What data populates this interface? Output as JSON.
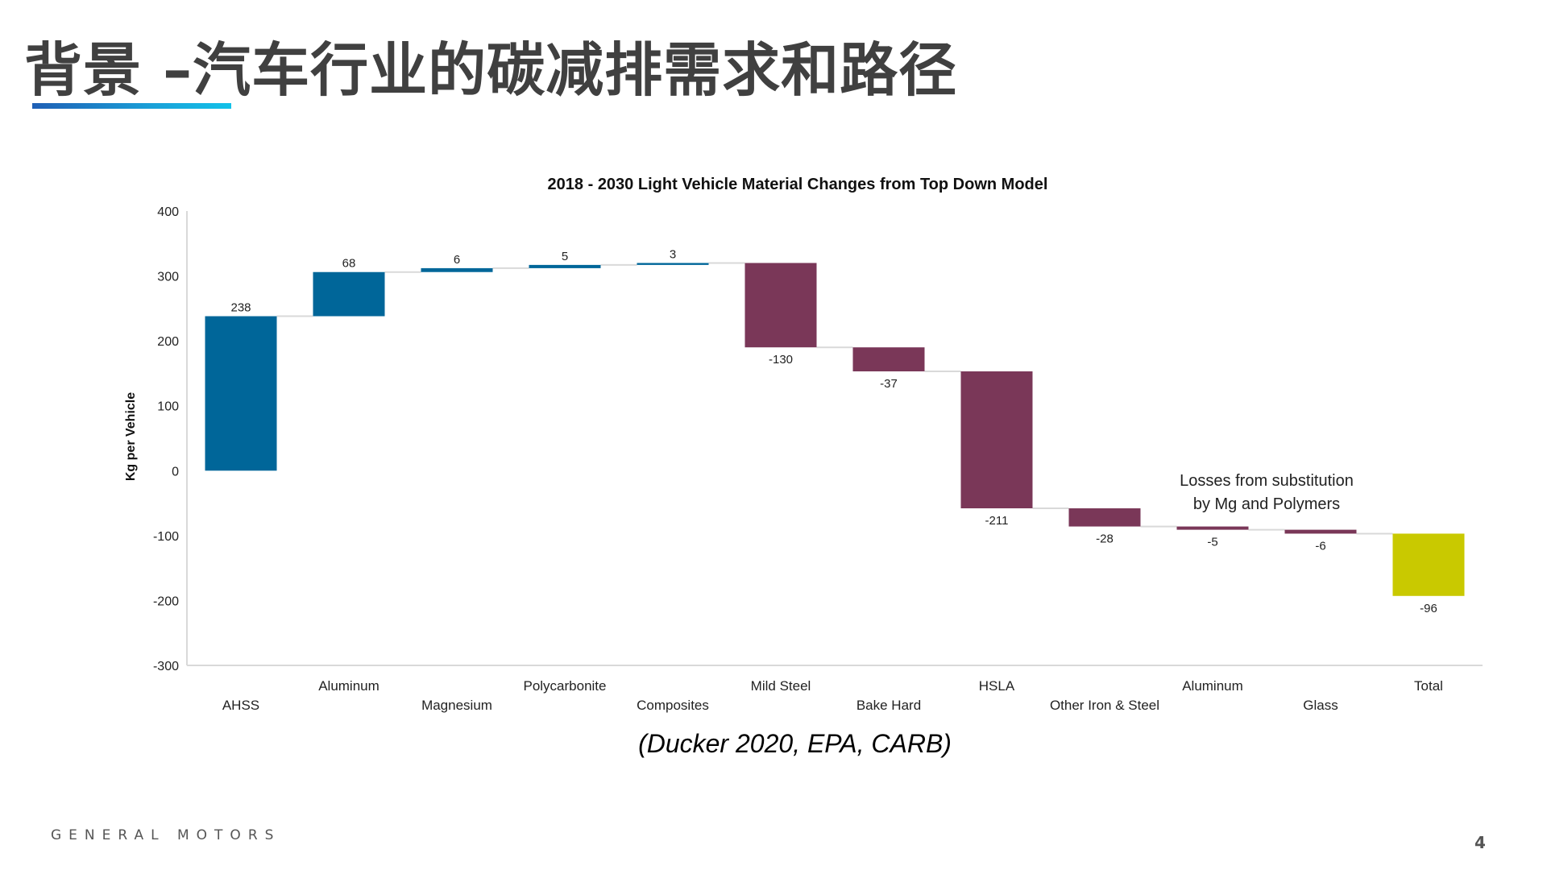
{
  "slide": {
    "title": "背景 –汽车行业的碳减排需求和路径",
    "source": "(Ducker 2020, EPA, CARB)",
    "logo_text": "GENERAL MOTORS",
    "page_number": "4"
  },
  "colors": {
    "increase": "#006699",
    "decrease": "#7a3758",
    "total": "#c9c900",
    "connector": "#d9d9d9",
    "axis": "#d9d9d9",
    "text": "#404040"
  },
  "chart_data": {
    "type": "bar",
    "subtype": "waterfall",
    "title": "2018 - 2030 Light Vehicle Material Changes from Top Down Model",
    "xlabel": "",
    "ylabel": "Kg per Vehicle",
    "ylim": [
      -300,
      400
    ],
    "yticks": [
      400,
      300,
      200,
      100,
      0,
      -100,
      -200,
      -300
    ],
    "grid": false,
    "categories": [
      "AHSS",
      "Aluminum",
      "Magnesium",
      "Polycarbonite",
      "Composites",
      "Mild Steel",
      "Bake Hard",
      "HSLA",
      "Other Iron & Steel",
      "Aluminum",
      "Glass",
      "Total"
    ],
    "values": [
      238,
      68,
      6,
      5,
      3,
      -130,
      -37,
      -211,
      -28,
      -5,
      -6,
      -96
    ],
    "data_labels": [
      "238",
      "68",
      "6",
      "5",
      "3",
      "-130",
      "-37",
      "-211",
      "-28",
      "-5",
      "-6",
      "-96"
    ],
    "annotation": {
      "lines": [
        "Losses from substitution",
        "by Mg and Polymers"
      ]
    }
  }
}
